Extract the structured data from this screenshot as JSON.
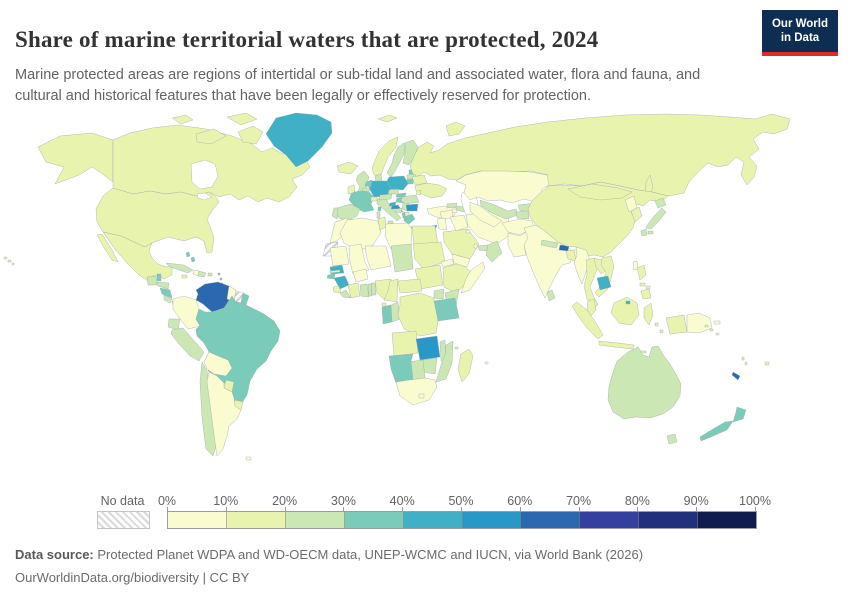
{
  "header": {
    "title": "Share of marine territorial waters that are protected, 2024",
    "subtitle": "Marine protected areas are regions of intertidal or sub-tidal land and associated water, flora and fauna, and cultural and historical features that have been legally or effectively reserved for protection.",
    "logo_line1": "Our World",
    "logo_line2": "in Data",
    "logo_bg": "#0d2d52",
    "logo_accent": "#dc2e22"
  },
  "legend": {
    "no_data_label": "No data",
    "ticks": [
      "0%",
      "10%",
      "20%",
      "30%",
      "40%",
      "50%",
      "60%",
      "70%",
      "80%",
      "90%",
      "100%"
    ],
    "colors": [
      "#fbfbd0",
      "#e8f4ad",
      "#cbe7b4",
      "#7acbb9",
      "#3fb0c6",
      "#2898c9",
      "#2b68af",
      "#33409e",
      "#21307c",
      "#101b4f"
    ]
  },
  "footer": {
    "source_label": "Data source:",
    "source_text": " Protected Planet WDPA and WD-OECM data, UNEP-WCMC and IUCN, via World Bank (2026)",
    "note": "OurWorldinData.org/biodiversity | CC BY"
  },
  "chart_data": {
    "type": "heatmap",
    "subtype": "world-choropleth",
    "title": "Share of marine territorial waters that are protected, 2024",
    "unit": "% of marine territorial waters protected",
    "legend_position": "bottom",
    "bin_labels": [
      "0-10%",
      "10-20%",
      "20-30%",
      "30-40%",
      "40-50%",
      "50-60%",
      "60-70%",
      "70-80%",
      "80-90%",
      "90-100%"
    ],
    "no_data_style": "gray diagonal hatch",
    "countries": {
      "canada": {
        "name": "Canada",
        "bin": 1
      },
      "usa": {
        "name": "United States",
        "bin": 1
      },
      "greenland": {
        "name": "Greenland",
        "bin": 4
      },
      "mexico": {
        "name": "Mexico",
        "bin": 1
      },
      "guatemala": {
        "name": "Guatemala",
        "bin": 2
      },
      "belize": {
        "name": "Belize",
        "bin": 3
      },
      "honduras": {
        "name": "Honduras",
        "bin": 2
      },
      "nicaragua": {
        "name": "Nicaragua",
        "bin": 3
      },
      "costa_rica": {
        "name": "Costa Rica",
        "bin": 2
      },
      "panama": {
        "name": "Panama",
        "bin": 2
      },
      "cuba": {
        "name": "Cuba",
        "bin": 2
      },
      "haiti": {
        "name": "Haiti",
        "bin": 0
      },
      "dominican_republic": {
        "name": "Dominican Republic",
        "bin": 2
      },
      "jamaica": {
        "name": "Jamaica",
        "bin": 1
      },
      "puerto_rico": {
        "name": "Puerto Rico",
        "bin": 2
      },
      "bahamas": {
        "name": "Bahamas",
        "bin": 3
      },
      "lesser_antilles": {
        "name": "Lesser Antilles",
        "bin": 3
      },
      "trinidad_tobago": {
        "name": "Trinidad and Tobago",
        "bin": 1
      },
      "colombia": {
        "name": "Colombia",
        "bin": 0
      },
      "venezuela": {
        "name": "Venezuela",
        "bin": 6
      },
      "guyana": {
        "name": "Guyana",
        "bin": 0
      },
      "suriname": {
        "name": "Suriname",
        "bin": "no_data"
      },
      "french_guiana": {
        "name": "French Guiana",
        "bin": 3
      },
      "ecuador": {
        "name": "Ecuador",
        "bin": 2
      },
      "peru": {
        "name": "Peru",
        "bin": 2
      },
      "brazil": {
        "name": "Brazil",
        "bin": 3
      },
      "bolivia": {
        "name": "Bolivia",
        "bin": 0
      },
      "paraguay": {
        "name": "Paraguay",
        "bin": 1
      },
      "uruguay": {
        "name": "Uruguay",
        "bin": 1
      },
      "chile": {
        "name": "Chile",
        "bin": 2
      },
      "argentina": {
        "name": "Argentina",
        "bin": 0
      },
      "falkland_islands": {
        "name": "Falkland Islands",
        "bin": 0
      },
      "iceland": {
        "name": "Iceland",
        "bin": 1
      },
      "united_kingdom": {
        "name": "United Kingdom",
        "bin": 2
      },
      "ireland": {
        "name": "Ireland",
        "bin": 1
      },
      "norway": {
        "name": "Norway",
        "bin": 1
      },
      "sweden": {
        "name": "Sweden",
        "bin": 2
      },
      "finland": {
        "name": "Finland",
        "bin": 2
      },
      "denmark": {
        "name": "Denmark",
        "bin": 2
      },
      "estonia": {
        "name": "Estonia",
        "bin": 3
      },
      "latvia": {
        "name": "Latvia",
        "bin": 2
      },
      "lithuania": {
        "name": "Lithuania",
        "bin": 3
      },
      "russia": {
        "name": "Russia",
        "bin": 1
      },
      "belarus": {
        "name": "Belarus",
        "bin": 1
      },
      "ukraine": {
        "name": "Ukraine",
        "bin": 1
      },
      "poland": {
        "name": "Poland",
        "bin": 4
      },
      "germany": {
        "name": "Germany",
        "bin": 4
      },
      "netherlands": {
        "name": "Netherlands",
        "bin": 3
      },
      "belgium": {
        "name": "Belgium",
        "bin": 2
      },
      "france": {
        "name": "France",
        "bin": 3
      },
      "spain": {
        "name": "Spain",
        "bin": 2
      },
      "portugal": {
        "name": "Portugal",
        "bin": 2
      },
      "italy": {
        "name": "Italy",
        "bin": 2
      },
      "switzerland": {
        "name": "Switzerland",
        "bin": 1
      },
      "austria": {
        "name": "Austria",
        "bin": 2
      },
      "czechia": {
        "name": "Czechia",
        "bin": 2
      },
      "slovakia": {
        "name": "Slovakia",
        "bin": 3
      },
      "hungary": {
        "name": "Hungary",
        "bin": 3
      },
      "slovenia": {
        "name": "Slovenia",
        "bin": 4
      },
      "croatia": {
        "name": "Croatia",
        "bin": 5
      },
      "bosnia": {
        "name": "Bosnia and Herzegovina",
        "bin": 2
      },
      "serbia": {
        "name": "Serbia",
        "bin": 2
      },
      "albania": {
        "name": "Albania",
        "bin": 3
      },
      "north_macedonia": {
        "name": "North Macedonia",
        "bin": 1
      },
      "greece": {
        "name": "Greece",
        "bin": 3
      },
      "bulgaria": {
        "name": "Bulgaria",
        "bin": 5
      },
      "romania": {
        "name": "Romania",
        "bin": 2
      },
      "moldova": {
        "name": "Moldova",
        "bin": 1
      },
      "turkey": {
        "name": "Turkey",
        "bin": 0
      },
      "georgia": {
        "name": "Georgia",
        "bin": 2
      },
      "azerbaijan": {
        "name": "Azerbaijan",
        "bin": 2
      },
      "armenia": {
        "name": "Armenia",
        "bin": 0
      },
      "cyprus": {
        "name": "Cyprus",
        "bin": 4
      },
      "morocco": {
        "name": "Morocco",
        "bin": 0
      },
      "western_sahara": {
        "name": "Western Sahara",
        "bin": "no_data"
      },
      "algeria": {
        "name": "Algeria",
        "bin": 0
      },
      "tunisia": {
        "name": "Tunisia",
        "bin": 1
      },
      "libya": {
        "name": "Libya",
        "bin": 0
      },
      "egypt": {
        "name": "Egypt",
        "bin": 1
      },
      "mauritania": {
        "name": "Mauritania",
        "bin": 0
      },
      "mali": {
        "name": "Mali",
        "bin": 0
      },
      "niger": {
        "name": "Niger",
        "bin": 0
      },
      "chad": {
        "name": "Chad",
        "bin": 2
      },
      "sudan": {
        "name": "Sudan",
        "bin": 1
      },
      "south_sudan": {
        "name": "South Sudan",
        "bin": 1
      },
      "eritrea": {
        "name": "Eritrea",
        "bin": 0
      },
      "djibouti": {
        "name": "Djibouti",
        "bin": 0
      },
      "ethiopia": {
        "name": "Ethiopia",
        "bin": 1
      },
      "somalia": {
        "name": "Somalia",
        "bin": 0
      },
      "kenya": {
        "name": "Kenya",
        "bin": 2
      },
      "uganda": {
        "name": "Uganda",
        "bin": 2
      },
      "tanzania": {
        "name": "Tanzania",
        "bin": 3
      },
      "rwanda_burundi": {
        "name": "Rwanda and Burundi",
        "bin": 1
      },
      "senegal": {
        "name": "Senegal",
        "bin": 4
      },
      "gambia": {
        "name": "Gambia",
        "bin": 1
      },
      "guinea_bissau": {
        "name": "Guinea-Bissau",
        "bin": 3
      },
      "guinea": {
        "name": "Guinea",
        "bin": 4
      },
      "sierra_leone": {
        "name": "Sierra Leone",
        "bin": 1
      },
      "liberia": {
        "name": "Liberia",
        "bin": 2
      },
      "ivory_coast": {
        "name": "Cote d'Ivoire",
        "bin": 1
      },
      "ghana": {
        "name": "Ghana",
        "bin": 2
      },
      "togo": {
        "name": "Togo",
        "bin": 2
      },
      "benin": {
        "name": "Benin",
        "bin": 2
      },
      "burkina_faso": {
        "name": "Burkina Faso",
        "bin": 0
      },
      "nigeria": {
        "name": "Nigeria",
        "bin": 1
      },
      "cameroon": {
        "name": "Cameroon",
        "bin": 1
      },
      "central_african_republic": {
        "name": "Central African Republic",
        "bin": 1
      },
      "equatorial_guinea": {
        "name": "Equatorial Guinea",
        "bin": 1
      },
      "gabon": {
        "name": "Gabon",
        "bin": 3
      },
      "congo": {
        "name": "Congo",
        "bin": 2
      },
      "drc": {
        "name": "Democratic Republic of Congo",
        "bin": 1
      },
      "angola": {
        "name": "Angola",
        "bin": 1
      },
      "zambia": {
        "name": "Zambia",
        "bin": 5
      },
      "malawi": {
        "name": "Malawi",
        "bin": 2
      },
      "mozambique": {
        "name": "Mozambique",
        "bin": 2
      },
      "zimbabwe": {
        "name": "Zimbabwe",
        "bin": 2
      },
      "botswana": {
        "name": "Botswana",
        "bin": 2
      },
      "namibia": {
        "name": "Namibia",
        "bin": 3
      },
      "south_africa": {
        "name": "South Africa",
        "bin": 0
      },
      "lesotho": {
        "name": "Lesotho",
        "bin": 0
      },
      "madagascar": {
        "name": "Madagascar",
        "bin": 1
      },
      "comoros": {
        "name": "Comoros",
        "bin": 1
      },
      "mauritius": {
        "name": "Mauritius",
        "bin": 0
      },
      "syria": {
        "name": "Syria",
        "bin": 0
      },
      "levant": {
        "name": "Lebanon, Israel and Jordan",
        "bin": 0
      },
      "iraq": {
        "name": "Iraq",
        "bin": 0
      },
      "iran": {
        "name": "Iran",
        "bin": 0
      },
      "saudi_arabia": {
        "name": "Saudi Arabia",
        "bin": 1
      },
      "kuwait": {
        "name": "Kuwait",
        "bin": 0
      },
      "qatar": {
        "name": "Qatar",
        "bin": 0
      },
      "uae": {
        "name": "United Arab Emirates",
        "bin": 2
      },
      "oman": {
        "name": "Oman",
        "bin": 2
      },
      "yemen": {
        "name": "Yemen",
        "bin": 0
      },
      "kazakhstan": {
        "name": "Kazakhstan",
        "bin": 0
      },
      "uzbekistan": {
        "name": "Uzbekistan",
        "bin": 2
      },
      "turkmenistan": {
        "name": "Turkmenistan",
        "bin": 0
      },
      "kyrgyzstan": {
        "name": "Kyrgyzstan",
        "bin": 2
      },
      "tajikistan": {
        "name": "Tajikistan",
        "bin": 2
      },
      "afghanistan": {
        "name": "Afghanistan",
        "bin": 0
      },
      "pakistan": {
        "name": "Pakistan",
        "bin": 0
      },
      "india": {
        "name": "India",
        "bin": 0
      },
      "nepal": {
        "name": "Nepal",
        "bin": 2
      },
      "bhutan": {
        "name": "Bhutan",
        "bin": 6
      },
      "bangladesh": {
        "name": "Bangladesh",
        "bin": 1
      },
      "sri_lanka": {
        "name": "Sri Lanka",
        "bin": 2
      },
      "myanmar": {
        "name": "Myanmar",
        "bin": 0
      },
      "thailand": {
        "name": "Thailand",
        "bin": 1
      },
      "laos": {
        "name": "Laos",
        "bin": 1
      },
      "vietnam": {
        "name": "Vietnam",
        "bin": 1
      },
      "cambodia": {
        "name": "Cambodia",
        "bin": 4
      },
      "malaysia": {
        "name": "Malaysia",
        "bin": 1
      },
      "brunei": {
        "name": "Brunei",
        "bin": 4
      },
      "indonesia": {
        "name": "Indonesia",
        "bin": 1
      },
      "philippines": {
        "name": "Philippines",
        "bin": 1
      },
      "papua_new_guinea": {
        "name": "Papua New Guinea",
        "bin": 0
      },
      "china": {
        "name": "China",
        "bin": 1
      },
      "mongolia": {
        "name": "Mongolia",
        "bin": 1
      },
      "north_korea": {
        "name": "North Korea",
        "bin": 0
      },
      "south_korea": {
        "name": "South Korea",
        "bin": 1
      },
      "japan": {
        "name": "Japan",
        "bin": 2
      },
      "taiwan": {
        "name": "Taiwan",
        "bin": 0
      },
      "australia": {
        "name": "Australia",
        "bin": 2
      },
      "new_zealand": {
        "name": "New Zealand",
        "bin": 3
      },
      "new_caledonia": {
        "name": "New Caledonia",
        "bin": 6
      },
      "fiji": {
        "name": "Fiji",
        "bin": 1
      },
      "vanuatu": {
        "name": "Vanuatu",
        "bin": 1
      },
      "solomon_islands": {
        "name": "Solomon Islands",
        "bin": 1
      }
    }
  }
}
